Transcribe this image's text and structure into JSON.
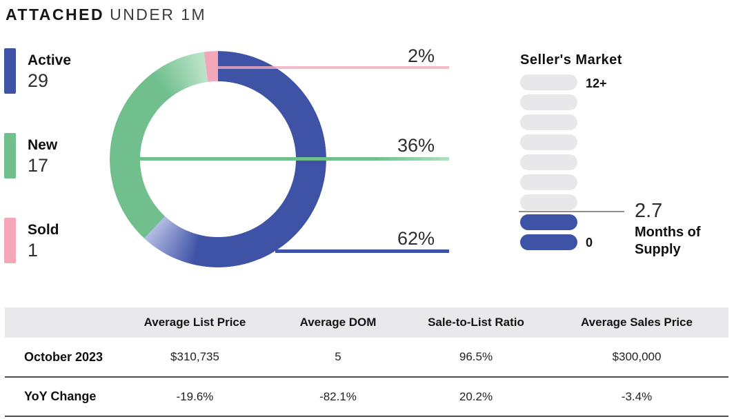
{
  "title": {
    "primary": "ATTACHED",
    "secondary": "UNDER 1M"
  },
  "legend": {
    "items": [
      {
        "label": "Active",
        "value": "29",
        "color": "#3E53A6"
      },
      {
        "label": "New",
        "value": "17",
        "color": "#70BF8D"
      },
      {
        "label": "Sold",
        "value": "1",
        "color": "#F4A7B9"
      }
    ]
  },
  "donut": {
    "callouts": [
      {
        "label": "2%",
        "series": "Sold"
      },
      {
        "label": "36%",
        "series": "New"
      },
      {
        "label": "62%",
        "series": "Active"
      }
    ]
  },
  "gauge": {
    "title": "Seller's Market",
    "max_label": "12+",
    "min_label": "0",
    "value": "2.7",
    "unit_line1": "Months of",
    "unit_line2": "Supply",
    "total_segments": 9,
    "filled_segments": 2
  },
  "table": {
    "headers": [
      "",
      "Average List Price",
      "Average DOM",
      "Sale-to-List Ratio",
      "Average Sales Price"
    ],
    "rows": [
      {
        "label": "October 2023",
        "values": [
          "$310,735",
          "5",
          "96.5%",
          "$300,000"
        ]
      },
      {
        "label": "YoY Change",
        "values": [
          "-19.6%",
          "-82.1%",
          "20.2%",
          "-3.4%"
        ]
      }
    ]
  },
  "colors": {
    "blue": "#3E53A6",
    "green": "#70BF8D",
    "pink": "#F4A7B9",
    "gauge_empty": "#E8E8EA",
    "table_header_bg": "#E9E9EB",
    "divider": "#4D4D4D"
  },
  "chart_data": [
    {
      "type": "pie",
      "donut": true,
      "title": "ATTACHED UNDER 1M",
      "labels": [
        "Active",
        "New",
        "Sold"
      ],
      "counts": [
        29,
        17,
        1
      ],
      "percent_labels": [
        62,
        36,
        2
      ],
      "colors": [
        "#3E53A6",
        "#70BF8D",
        "#F4A7B9"
      ],
      "start_angle_deg": 0,
      "direction": "clockwise",
      "order_clockwise_from_top": [
        "Active 62%",
        "New 36%",
        "Sold 2%"
      ],
      "legend_position": "left"
    },
    {
      "type": "bar",
      "subtype": "vertical-segment-gauge",
      "title": "Seller's Market",
      "value": 2.7,
      "value_unit": "Months of Supply",
      "scale_min": 0,
      "scale_max_label": "12+",
      "segments_total": 9,
      "segments_filled": 2,
      "threshold_marker_at_value": 2.7
    },
    {
      "type": "table",
      "columns": [
        "",
        "Average List Price",
        "Average DOM",
        "Sale-to-List Ratio",
        "Average Sales Price"
      ],
      "rows": [
        [
          "October 2023",
          "$310,735",
          "5",
          "96.5%",
          "$300,000"
        ],
        [
          "YoY Change",
          "-19.6%",
          "-82.1%",
          "20.2%",
          "-3.4%"
        ]
      ]
    }
  ]
}
